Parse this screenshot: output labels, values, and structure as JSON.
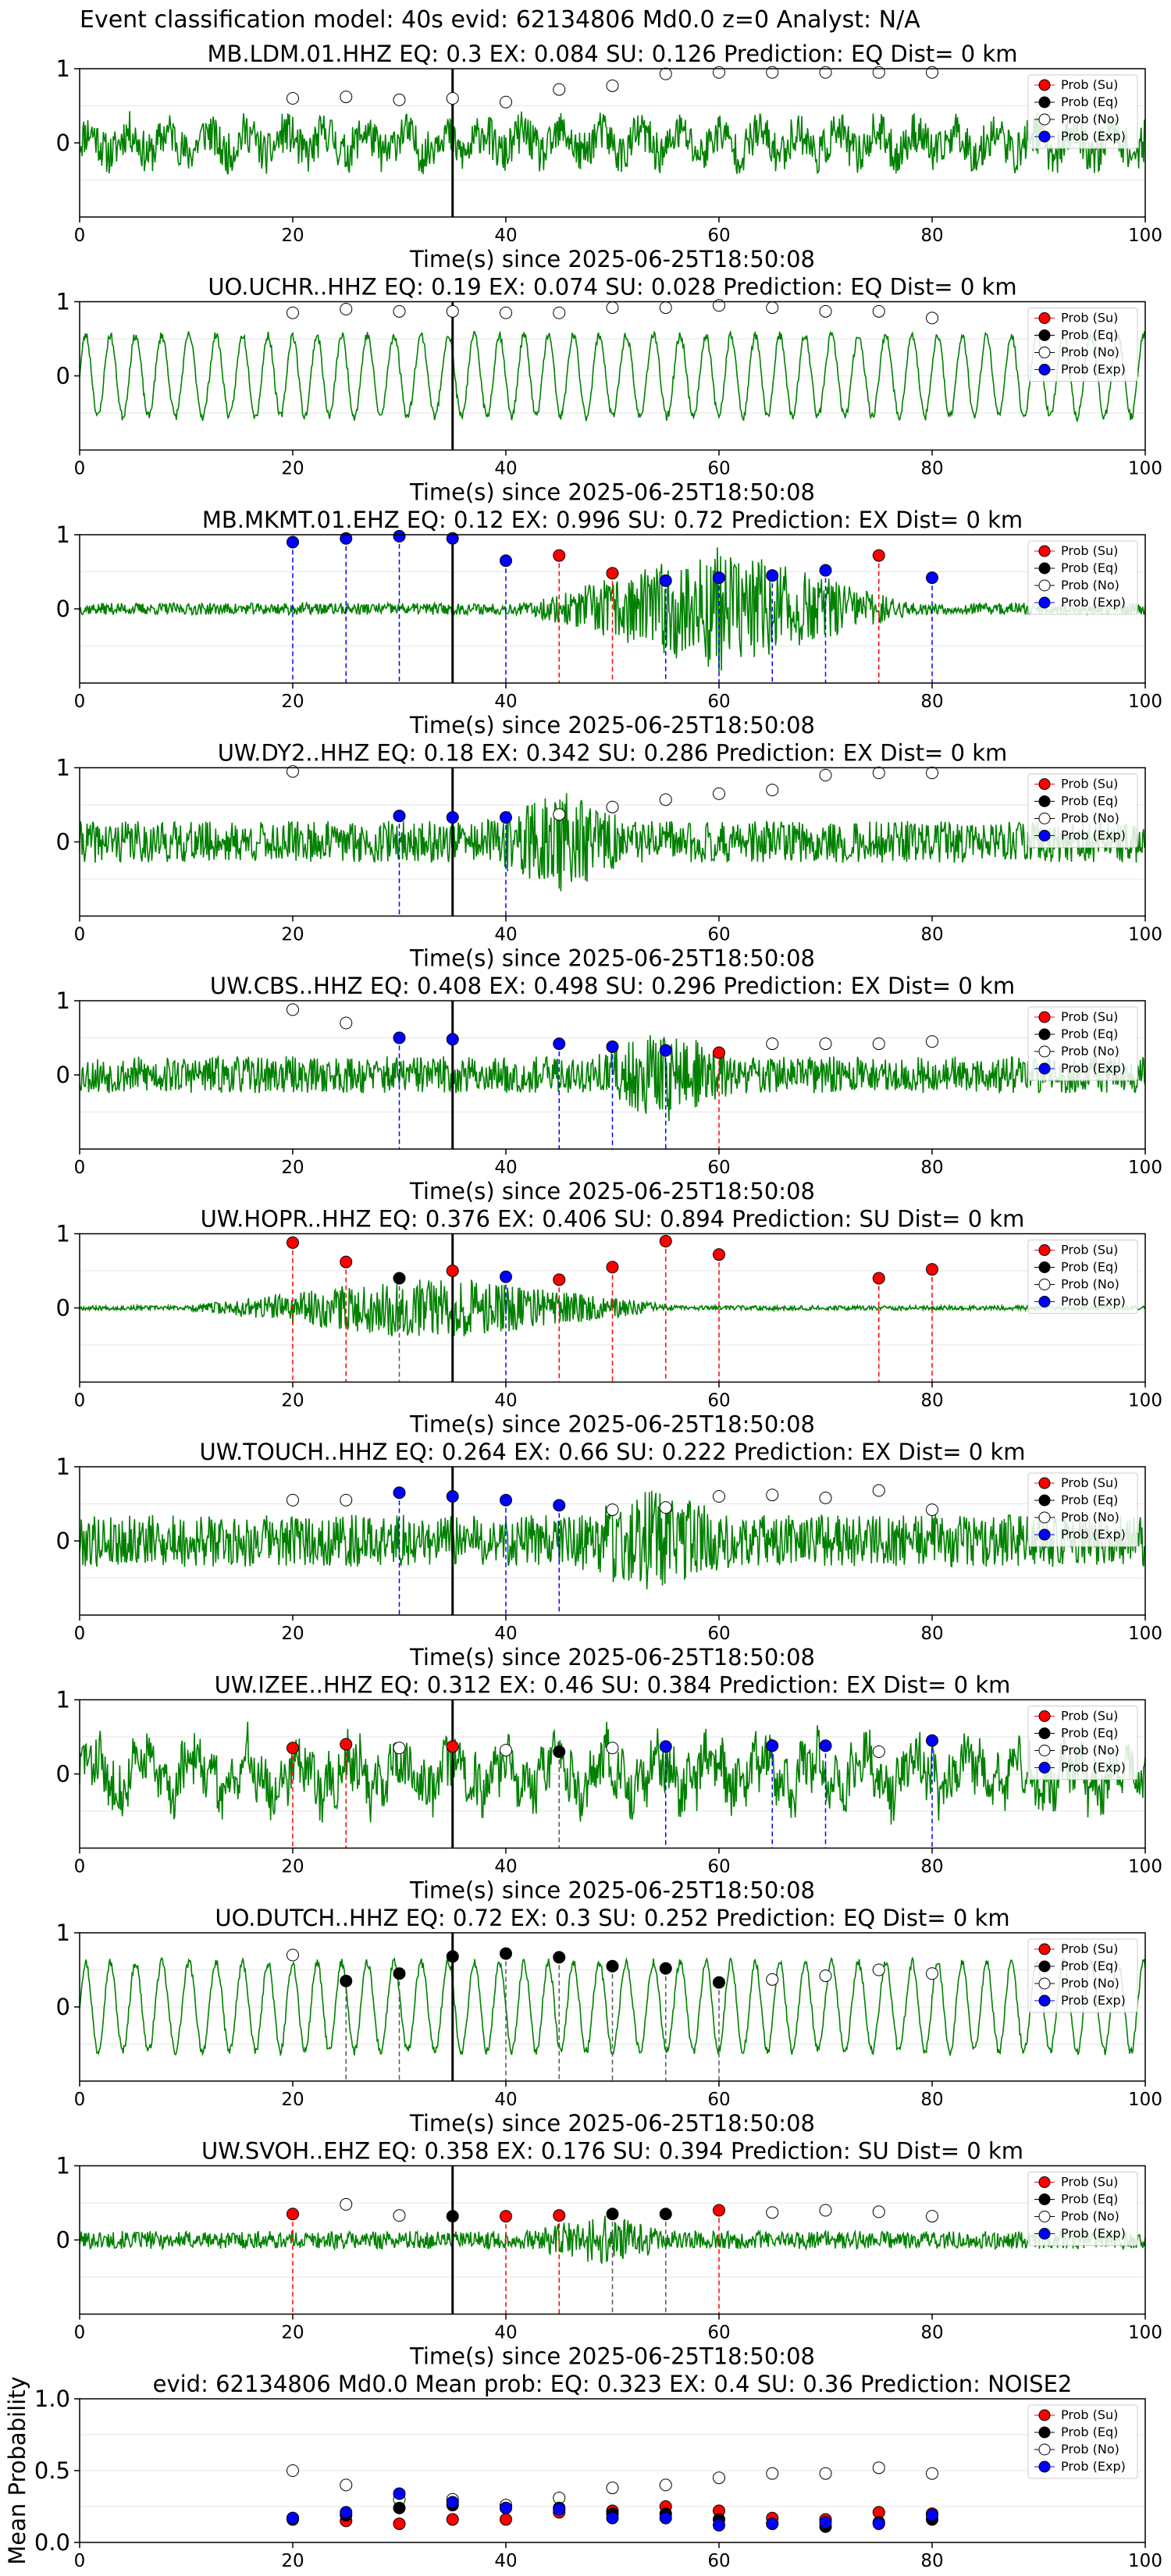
{
  "header": {
    "title": "Event classification model: 40s evid: 62134806 Md0.0 z=0 Analyst: N/A"
  },
  "legend_labels": [
    "Prob (Su)",
    "Prob (Eq)",
    "Prob (No)",
    "Prob (Exp)"
  ],
  "colors": {
    "su": "#ff0000",
    "eq": "#000000",
    "no": "#ffffff",
    "exp": "#0000ff",
    "waveform": "#008000",
    "ref_line": "#000000",
    "grid": "#e6e6e6"
  },
  "chart_data": [
    {
      "type": "line",
      "title": "MB.LDM.01.HHZ   EQ: 0.3  EX: 0.084  SU: 0.126   Prediction: EQ    Dist= 0 km",
      "xlabel": "Time(s) since 2025-06-25T18:50:08",
      "xlim": [
        0,
        100
      ],
      "ylim": [
        -1,
        1
      ],
      "xticks": [
        0,
        20,
        40,
        60,
        80,
        100
      ],
      "yticks": [
        0,
        1
      ],
      "ref_line_x": 35,
      "waveform": {
        "style": "noise",
        "amp": 0.28,
        "seed": 11
      },
      "points": [
        {
          "x": 20,
          "y": 0.6,
          "cls": "no"
        },
        {
          "x": 25,
          "y": 0.62,
          "cls": "no"
        },
        {
          "x": 30,
          "y": 0.58,
          "cls": "no"
        },
        {
          "x": 35,
          "y": 0.6,
          "cls": "no"
        },
        {
          "x": 40,
          "y": 0.55,
          "cls": "no"
        },
        {
          "x": 45,
          "y": 0.72,
          "cls": "no"
        },
        {
          "x": 50,
          "y": 0.77,
          "cls": "no"
        },
        {
          "x": 55,
          "y": 0.93,
          "cls": "no"
        },
        {
          "x": 60,
          "y": 0.95,
          "cls": "no"
        },
        {
          "x": 65,
          "y": 0.95,
          "cls": "no"
        },
        {
          "x": 70,
          "y": 0.95,
          "cls": "no"
        },
        {
          "x": 75,
          "y": 0.95,
          "cls": "no"
        },
        {
          "x": 80,
          "y": 0.95,
          "cls": "no"
        }
      ]
    },
    {
      "type": "line",
      "title": "UO.UCHR..HHZ   EQ: 0.19  EX: 0.074  SU: 0.028   Prediction: EQ    Dist= 0 km",
      "xlabel": "Time(s) since 2025-06-25T18:50:08",
      "xlim": [
        0,
        100
      ],
      "ylim": [
        -1,
        1
      ],
      "xticks": [
        0,
        20,
        40,
        60,
        80,
        100
      ],
      "yticks": [
        0,
        1
      ],
      "ref_line_x": 35,
      "waveform": {
        "style": "wave",
        "amp": 0.55,
        "seed": 23
      },
      "points": [
        {
          "x": 20,
          "y": 0.85,
          "cls": "no"
        },
        {
          "x": 25,
          "y": 0.9,
          "cls": "no"
        },
        {
          "x": 30,
          "y": 0.87,
          "cls": "no"
        },
        {
          "x": 35,
          "y": 0.87,
          "cls": "no"
        },
        {
          "x": 40,
          "y": 0.85,
          "cls": "no"
        },
        {
          "x": 45,
          "y": 0.85,
          "cls": "no"
        },
        {
          "x": 50,
          "y": 0.92,
          "cls": "no"
        },
        {
          "x": 55,
          "y": 0.92,
          "cls": "no"
        },
        {
          "x": 60,
          "y": 0.95,
          "cls": "no"
        },
        {
          "x": 65,
          "y": 0.92,
          "cls": "no"
        },
        {
          "x": 70,
          "y": 0.87,
          "cls": "no"
        },
        {
          "x": 75,
          "y": 0.87,
          "cls": "no"
        },
        {
          "x": 80,
          "y": 0.78,
          "cls": "no"
        }
      ]
    },
    {
      "type": "line",
      "title": "MB.MKMT.01.EHZ   EQ: 0.12  EX: 0.996  SU: 0.72   Prediction: EX    Dist= 0 km",
      "xlabel": "Time(s) since 2025-06-25T18:50:08",
      "xlim": [
        0,
        100
      ],
      "ylim": [
        -1,
        1
      ],
      "xticks": [
        0,
        20,
        40,
        60,
        80,
        100
      ],
      "yticks": [
        0,
        1
      ],
      "ref_line_x": 35,
      "waveform": {
        "style": "burst",
        "amp": 0.08,
        "burst": [
          42,
          78
        ],
        "burstAmp": 0.85,
        "seed": 37
      },
      "points": [
        {
          "x": 20,
          "y": 0.9,
          "cls": "exp"
        },
        {
          "x": 25,
          "y": 0.95,
          "cls": "exp"
        },
        {
          "x": 30,
          "y": 0.98,
          "cls": "exp"
        },
        {
          "x": 35,
          "y": 0.95,
          "cls": "exp"
        },
        {
          "x": 40,
          "y": 0.65,
          "cls": "exp"
        },
        {
          "x": 45,
          "y": 0.72,
          "cls": "su"
        },
        {
          "x": 50,
          "y": 0.48,
          "cls": "su"
        },
        {
          "x": 55,
          "y": 0.38,
          "cls": "exp"
        },
        {
          "x": 60,
          "y": 0.42,
          "cls": "exp"
        },
        {
          "x": 65,
          "y": 0.45,
          "cls": "exp"
        },
        {
          "x": 70,
          "y": 0.52,
          "cls": "exp"
        },
        {
          "x": 75,
          "y": 0.72,
          "cls": "su"
        },
        {
          "x": 80,
          "y": 0.42,
          "cls": "exp"
        }
      ]
    },
    {
      "type": "line",
      "title": "UW.DY2..HHZ   EQ: 0.18  EX: 0.342  SU: 0.286   Prediction: EX    Dist= 0 km",
      "xlabel": "Time(s) since 2025-06-25T18:50:08",
      "xlim": [
        0,
        100
      ],
      "ylim": [
        -1,
        1
      ],
      "xticks": [
        0,
        20,
        40,
        60,
        80,
        100
      ],
      "yticks": [
        0,
        1
      ],
      "ref_line_x": 35,
      "waveform": {
        "style": "burst",
        "amp": 0.28,
        "burst": [
          38,
          52
        ],
        "burstAmp": 0.7,
        "seed": 41
      },
      "points": [
        {
          "x": 20,
          "y": 0.95,
          "cls": "no"
        },
        {
          "x": 30,
          "y": 0.35,
          "cls": "exp"
        },
        {
          "x": 35,
          "y": 0.33,
          "cls": "exp"
        },
        {
          "x": 40,
          "y": 0.33,
          "cls": "exp"
        },
        {
          "x": 45,
          "y": 0.37,
          "cls": "no"
        },
        {
          "x": 50,
          "y": 0.47,
          "cls": "no"
        },
        {
          "x": 55,
          "y": 0.57,
          "cls": "no"
        },
        {
          "x": 60,
          "y": 0.65,
          "cls": "no"
        },
        {
          "x": 65,
          "y": 0.7,
          "cls": "no"
        },
        {
          "x": 70,
          "y": 0.9,
          "cls": "no"
        },
        {
          "x": 75,
          "y": 0.93,
          "cls": "no"
        },
        {
          "x": 80,
          "y": 0.93,
          "cls": "no"
        }
      ]
    },
    {
      "type": "line",
      "title": "UW.CBS..HHZ   EQ: 0.408  EX: 0.498  SU: 0.296   Prediction: EX    Dist= 0 km",
      "xlabel": "Time(s) since 2025-06-25T18:50:08",
      "xlim": [
        0,
        100
      ],
      "ylim": [
        -1,
        1
      ],
      "xticks": [
        0,
        20,
        40,
        60,
        80,
        100
      ],
      "yticks": [
        0,
        1
      ],
      "ref_line_x": 35,
      "waveform": {
        "style": "burst",
        "amp": 0.25,
        "burst": [
          48,
          62
        ],
        "burstAmp": 0.65,
        "seed": 53
      },
      "points": [
        {
          "x": 20,
          "y": 0.88,
          "cls": "no"
        },
        {
          "x": 25,
          "y": 0.7,
          "cls": "no"
        },
        {
          "x": 30,
          "y": 0.5,
          "cls": "exp"
        },
        {
          "x": 35,
          "y": 0.48,
          "cls": "exp"
        },
        {
          "x": 45,
          "y": 0.42,
          "cls": "exp"
        },
        {
          "x": 50,
          "y": 0.38,
          "cls": "exp"
        },
        {
          "x": 55,
          "y": 0.33,
          "cls": "exp"
        },
        {
          "x": 60,
          "y": 0.3,
          "cls": "su"
        },
        {
          "x": 65,
          "y": 0.42,
          "cls": "no"
        },
        {
          "x": 70,
          "y": 0.42,
          "cls": "no"
        },
        {
          "x": 75,
          "y": 0.42,
          "cls": "no"
        },
        {
          "x": 80,
          "y": 0.45,
          "cls": "no"
        }
      ]
    },
    {
      "type": "line",
      "title": "UW.HOPR..HHZ   EQ: 0.376  EX: 0.406  SU: 0.894   Prediction: SU    Dist= 0 km",
      "xlabel": "Time(s) since 2025-06-25T18:50:08",
      "xlim": [
        0,
        100
      ],
      "ylim": [
        -1,
        1
      ],
      "xticks": [
        0,
        20,
        40,
        60,
        80,
        100
      ],
      "yticks": [
        0,
        1
      ],
      "ref_line_x": 35,
      "waveform": {
        "style": "burst",
        "amp": 0.03,
        "burst": [
          10,
          56
        ],
        "burstAmp": 0.45,
        "seed": 67
      },
      "points": [
        {
          "x": 20,
          "y": 0.88,
          "cls": "su"
        },
        {
          "x": 25,
          "y": 0.62,
          "cls": "su"
        },
        {
          "x": 30,
          "y": 0.4,
          "cls": "eq"
        },
        {
          "x": 35,
          "y": 0.5,
          "cls": "su"
        },
        {
          "x": 40,
          "y": 0.42,
          "cls": "exp"
        },
        {
          "x": 45,
          "y": 0.38,
          "cls": "su"
        },
        {
          "x": 50,
          "y": 0.55,
          "cls": "su"
        },
        {
          "x": 55,
          "y": 0.9,
          "cls": "su"
        },
        {
          "x": 60,
          "y": 0.72,
          "cls": "su"
        },
        {
          "x": 75,
          "y": 0.4,
          "cls": "su"
        },
        {
          "x": 80,
          "y": 0.52,
          "cls": "su"
        }
      ]
    },
    {
      "type": "line",
      "title": "UW.TOUCH..HHZ   EQ: 0.264  EX: 0.66  SU: 0.222   Prediction: EX    Dist= 0 km",
      "xlabel": "Time(s) since 2025-06-25T18:50:08",
      "xlim": [
        0,
        100
      ],
      "ylim": [
        -1,
        1
      ],
      "xticks": [
        0,
        20,
        40,
        60,
        80,
        100
      ],
      "yticks": [
        0,
        1
      ],
      "ref_line_x": 35,
      "waveform": {
        "style": "burst",
        "amp": 0.35,
        "burst": [
          45,
          62
        ],
        "burstAmp": 0.7,
        "seed": 79
      },
      "points": [
        {
          "x": 20,
          "y": 0.55,
          "cls": "no"
        },
        {
          "x": 25,
          "y": 0.55,
          "cls": "no"
        },
        {
          "x": 30,
          "y": 0.65,
          "cls": "exp"
        },
        {
          "x": 35,
          "y": 0.6,
          "cls": "exp"
        },
        {
          "x": 40,
          "y": 0.55,
          "cls": "exp"
        },
        {
          "x": 45,
          "y": 0.48,
          "cls": "exp"
        },
        {
          "x": 50,
          "y": 0.42,
          "cls": "no"
        },
        {
          "x": 55,
          "y": 0.45,
          "cls": "no"
        },
        {
          "x": 60,
          "y": 0.6,
          "cls": "no"
        },
        {
          "x": 65,
          "y": 0.62,
          "cls": "no"
        },
        {
          "x": 70,
          "y": 0.58,
          "cls": "no"
        },
        {
          "x": 75,
          "y": 0.68,
          "cls": "no"
        },
        {
          "x": 80,
          "y": 0.42,
          "cls": "no"
        }
      ]
    },
    {
      "type": "line",
      "title": "UW.IZEE..HHZ   EQ: 0.312  EX: 0.46  SU: 0.384   Prediction: EX    Dist= 0 km",
      "xlabel": "Time(s) since 2025-06-25T18:50:08",
      "xlim": [
        0,
        100
      ],
      "ylim": [
        -1,
        1
      ],
      "xticks": [
        0,
        20,
        40,
        60,
        80,
        100
      ],
      "yticks": [
        0,
        1
      ],
      "ref_line_x": 35,
      "waveform": {
        "style": "mixed",
        "amp": 0.35,
        "seed": 83
      },
      "points": [
        {
          "x": 20,
          "y": 0.35,
          "cls": "su"
        },
        {
          "x": 25,
          "y": 0.4,
          "cls": "su"
        },
        {
          "x": 30,
          "y": 0.35,
          "cls": "no"
        },
        {
          "x": 35,
          "y": 0.37,
          "cls": "su"
        },
        {
          "x": 40,
          "y": 0.32,
          "cls": "no"
        },
        {
          "x": 45,
          "y": 0.3,
          "cls": "eq"
        },
        {
          "x": 50,
          "y": 0.35,
          "cls": "no"
        },
        {
          "x": 55,
          "y": 0.37,
          "cls": "exp"
        },
        {
          "x": 65,
          "y": 0.38,
          "cls": "exp"
        },
        {
          "x": 70,
          "y": 0.38,
          "cls": "exp"
        },
        {
          "x": 75,
          "y": 0.3,
          "cls": "no"
        },
        {
          "x": 80,
          "y": 0.45,
          "cls": "exp"
        }
      ]
    },
    {
      "type": "line",
      "title": "UO.DUTCH..HHZ   EQ: 0.72  EX: 0.3  SU: 0.252   Prediction: EQ    Dist= 0 km",
      "xlabel": "Time(s) since 2025-06-25T18:50:08",
      "xlim": [
        0,
        100
      ],
      "ylim": [
        -1,
        1
      ],
      "xticks": [
        0,
        20,
        40,
        60,
        80,
        100
      ],
      "yticks": [
        0,
        1
      ],
      "ref_line_x": 35,
      "waveform": {
        "style": "wave",
        "amp": 0.6,
        "seed": 97
      },
      "points": [
        {
          "x": 20,
          "y": 0.7,
          "cls": "no"
        },
        {
          "x": 25,
          "y": 0.35,
          "cls": "eq"
        },
        {
          "x": 30,
          "y": 0.45,
          "cls": "eq"
        },
        {
          "x": 35,
          "y": 0.68,
          "cls": "eq"
        },
        {
          "x": 40,
          "y": 0.72,
          "cls": "eq"
        },
        {
          "x": 45,
          "y": 0.67,
          "cls": "eq"
        },
        {
          "x": 50,
          "y": 0.55,
          "cls": "eq"
        },
        {
          "x": 55,
          "y": 0.52,
          "cls": "eq"
        },
        {
          "x": 60,
          "y": 0.33,
          "cls": "eq"
        },
        {
          "x": 65,
          "y": 0.37,
          "cls": "no"
        },
        {
          "x": 70,
          "y": 0.42,
          "cls": "no"
        },
        {
          "x": 75,
          "y": 0.5,
          "cls": "no"
        },
        {
          "x": 80,
          "y": 0.45,
          "cls": "no"
        }
      ]
    },
    {
      "type": "line",
      "title": "UW.SVOH..EHZ   EQ: 0.358  EX: 0.176  SU: 0.394   Prediction: SU    Dist= 0 km",
      "xlabel": "Time(s) since 2025-06-25T18:50:08",
      "xlim": [
        0,
        100
      ],
      "ylim": [
        -1,
        1
      ],
      "xticks": [
        0,
        20,
        40,
        60,
        80,
        100
      ],
      "yticks": [
        0,
        1
      ],
      "ref_line_x": 35,
      "waveform": {
        "style": "burst",
        "amp": 0.12,
        "burst": [
          42,
          56
        ],
        "burstAmp": 0.35,
        "seed": 101
      },
      "points": [
        {
          "x": 20,
          "y": 0.35,
          "cls": "su"
        },
        {
          "x": 25,
          "y": 0.48,
          "cls": "no"
        },
        {
          "x": 30,
          "y": 0.33,
          "cls": "no"
        },
        {
          "x": 35,
          "y": 0.32,
          "cls": "eq"
        },
        {
          "x": 40,
          "y": 0.32,
          "cls": "su"
        },
        {
          "x": 45,
          "y": 0.33,
          "cls": "su"
        },
        {
          "x": 50,
          "y": 0.35,
          "cls": "eq"
        },
        {
          "x": 55,
          "y": 0.35,
          "cls": "eq"
        },
        {
          "x": 60,
          "y": 0.4,
          "cls": "su"
        },
        {
          "x": 65,
          "y": 0.37,
          "cls": "no"
        },
        {
          "x": 70,
          "y": 0.4,
          "cls": "no"
        },
        {
          "x": 75,
          "y": 0.38,
          "cls": "no"
        },
        {
          "x": 80,
          "y": 0.32,
          "cls": "no"
        }
      ]
    },
    {
      "type": "scatter",
      "title": "evid: 62134806  Md0.0   Mean prob:   EQ: 0.323  EX: 0.4  SU: 0.36   Prediction: NOISE2",
      "ylabel": "Mean Probability",
      "xlim": [
        0,
        100
      ],
      "ylim": [
        0,
        1
      ],
      "xticks": [
        0,
        20,
        40,
        60,
        80,
        100
      ],
      "yticks": [
        0.0,
        0.5,
        1.0
      ],
      "ytick_labels": [
        "0.0",
        "0.5",
        "1.0"
      ],
      "x": [
        20,
        25,
        30,
        35,
        40,
        45,
        50,
        55,
        60,
        65,
        70,
        75,
        80
      ],
      "series": [
        {
          "cls": "no",
          "values": [
            0.5,
            0.4,
            0.3,
            0.3,
            0.26,
            0.31,
            0.38,
            0.4,
            0.45,
            0.48,
            0.48,
            0.52,
            0.48
          ]
        },
        {
          "cls": "su",
          "values": [
            0.17,
            0.15,
            0.13,
            0.16,
            0.16,
            0.21,
            0.22,
            0.25,
            0.22,
            0.17,
            0.16,
            0.21,
            0.2
          ]
        },
        {
          "cls": "eq",
          "values": [
            0.16,
            0.19,
            0.24,
            0.26,
            0.24,
            0.24,
            0.2,
            0.2,
            0.16,
            0.13,
            0.11,
            0.14,
            0.16
          ]
        },
        {
          "cls": "exp",
          "values": [
            0.17,
            0.21,
            0.34,
            0.28,
            0.24,
            0.23,
            0.17,
            0.17,
            0.12,
            0.13,
            0.14,
            0.13,
            0.19
          ]
        }
      ]
    }
  ]
}
